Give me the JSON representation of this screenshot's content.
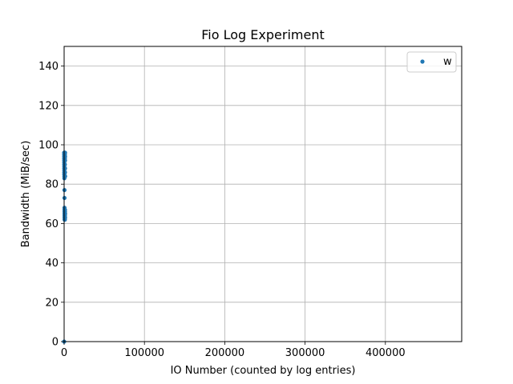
{
  "chart_data": {
    "type": "scatter",
    "title": "Fio Log Experiment",
    "xlabel": "IO Number (counted by log entries)",
    "ylabel": "Bandwidth (MiB/sec)",
    "xlim": [
      0,
      495000
    ],
    "ylim": [
      0,
      150
    ],
    "xticks": [
      0,
      100000,
      200000,
      300000,
      400000
    ],
    "yticks": [
      0,
      20,
      40,
      60,
      80,
      100,
      120,
      140
    ],
    "grid": true,
    "legend_position": "top-right",
    "series": [
      {
        "name": "w",
        "color": "#1f77b4",
        "x": [
          0,
          20,
          40,
          60,
          80,
          100,
          120,
          140,
          160,
          180,
          200,
          220,
          240,
          260,
          280,
          300,
          320,
          340,
          360,
          380,
          400,
          420,
          440,
          460,
          480,
          500,
          520,
          540,
          560,
          580,
          600,
          620,
          640,
          660,
          680,
          700,
          720,
          740,
          760,
          780,
          800,
          820,
          840,
          860,
          880,
          900,
          920,
          940,
          960,
          980,
          1000,
          1020,
          1040,
          1060,
          1080,
          1100,
          1120,
          1140,
          1160,
          1180,
          1200
        ],
        "y": [
          0,
          96,
          95,
          93,
          94,
          92,
          91,
          90,
          89,
          88,
          87,
          86,
          85,
          84,
          83,
          85,
          86,
          88,
          90,
          92,
          95,
          94,
          77,
          73,
          68,
          67,
          66,
          65,
          64,
          63,
          62,
          63,
          64,
          65,
          66,
          67,
          64,
          62,
          63,
          65,
          66,
          84,
          86,
          88,
          90,
          93,
          95,
          62,
          63,
          64,
          65,
          66,
          67,
          86,
          88,
          92,
          94,
          96,
          63,
          65,
          84
        ]
      }
    ]
  }
}
